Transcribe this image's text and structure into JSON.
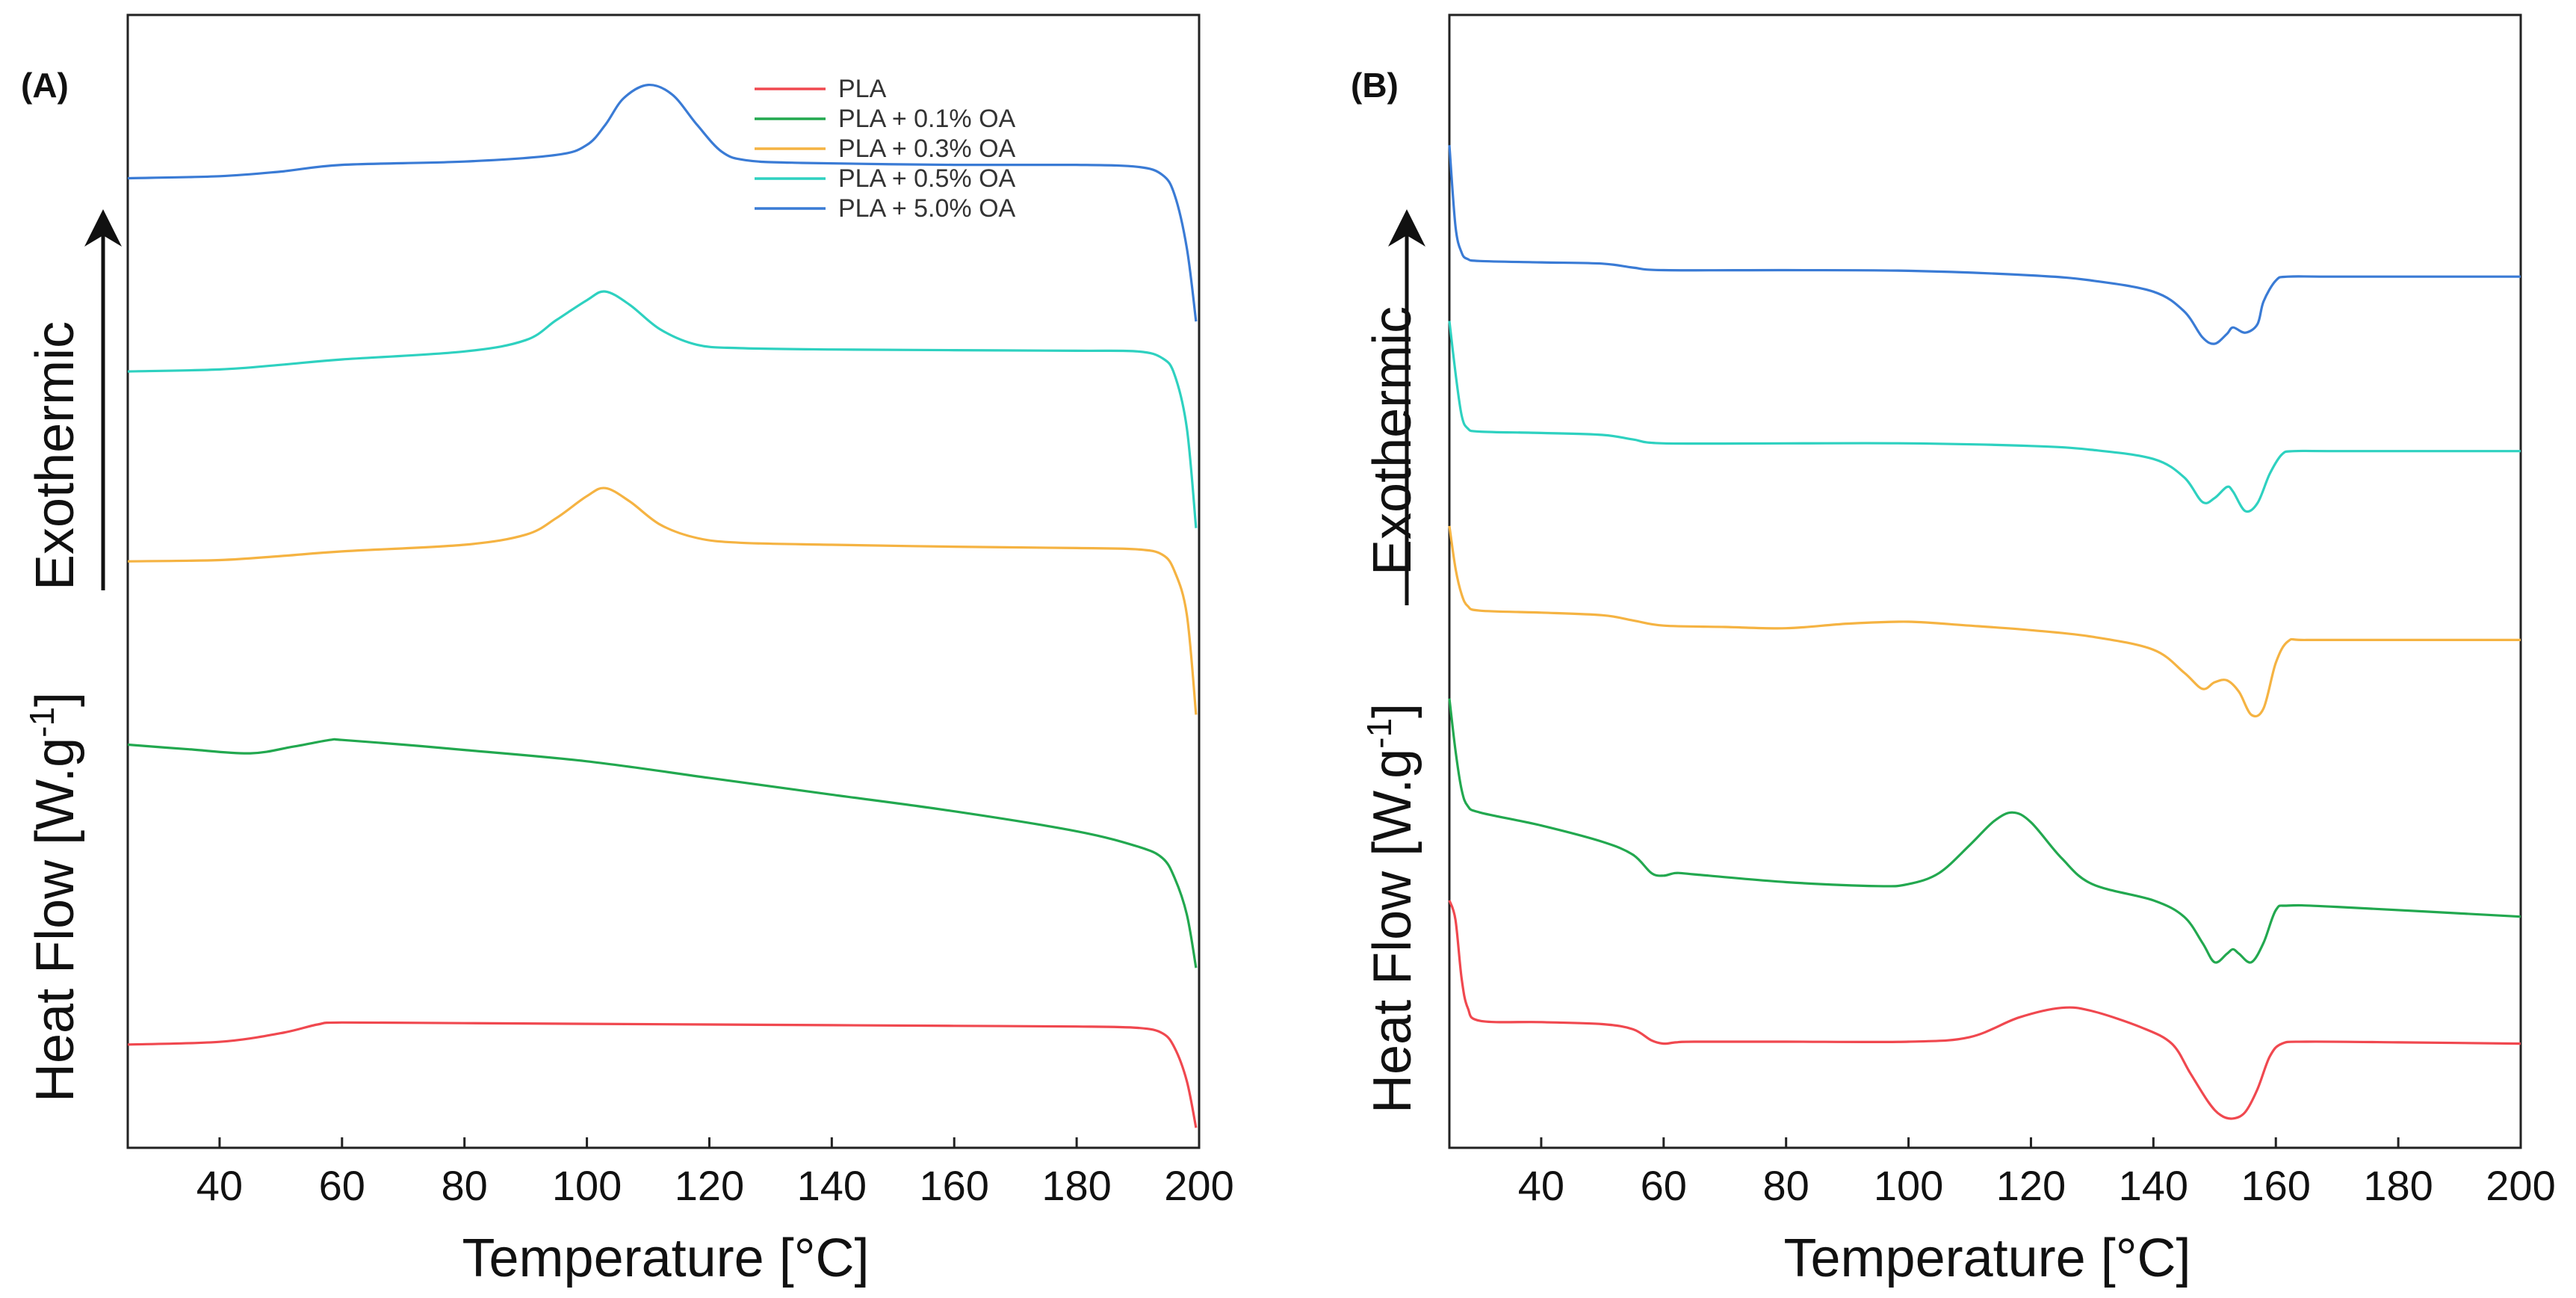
{
  "chart_data": [
    {
      "type": "line",
      "panel_label": "(A)",
      "xlabel": "Temperature [°C]",
      "ylabel": {
        "prefix": "Heat Flow  [W.g",
        "sup": "-1",
        "suffix": "]"
      },
      "arrow_label": "Exothermic",
      "xlim": [
        25,
        200
      ],
      "xticks": [
        "40",
        "60",
        "80",
        "100",
        "120",
        "140",
        "160",
        "180",
        "200"
      ],
      "legend": {
        "placement": "top-right"
      },
      "series": [
        {
          "name": "PLA",
          "color": "#f0484f",
          "x": [
            25,
            40,
            50,
            56,
            60,
            80,
            100,
            120,
            140,
            160,
            180,
            190,
            194,
            196,
            198,
            199.5
          ],
          "y": [
            1.05,
            1.09,
            1.22,
            1.35,
            1.38,
            1.37,
            1.36,
            1.35,
            1.34,
            1.33,
            1.32,
            1.3,
            1.22,
            1.0,
            0.5,
            -0.2
          ]
        },
        {
          "name": "PLA + 0.1% OA",
          "color": "#22a84f",
          "x": [
            25,
            35,
            45,
            52,
            58,
            60,
            70,
            80,
            100,
            120,
            140,
            160,
            180,
            190,
            194,
            196,
            198,
            199.5
          ],
          "y": [
            5.55,
            5.48,
            5.42,
            5.52,
            5.62,
            5.62,
            5.55,
            5.47,
            5.3,
            5.05,
            4.8,
            4.55,
            4.25,
            4.02,
            3.85,
            3.55,
            3.0,
            2.2
          ]
        },
        {
          "name": "PLA + 0.3% OA",
          "color": "#f5b342",
          "x": [
            25,
            40,
            50,
            60,
            80,
            90,
            95,
            100,
            103,
            107,
            112,
            118,
            125,
            140,
            160,
            180,
            190,
            194,
            196,
            198,
            199.5
          ],
          "y": [
            8.3,
            8.32,
            8.38,
            8.45,
            8.55,
            8.7,
            8.95,
            9.28,
            9.4,
            9.2,
            8.85,
            8.65,
            8.58,
            8.55,
            8.52,
            8.5,
            8.48,
            8.4,
            8.15,
            7.5,
            6.0
          ]
        },
        {
          "name": "PLA + 0.5% OA",
          "color": "#2ed1c0",
          "x": [
            25,
            40,
            50,
            60,
            80,
            90,
            95,
            100,
            103,
            107,
            112,
            118,
            125,
            140,
            160,
            180,
            190,
            194,
            196,
            198,
            199.5
          ],
          "y": [
            11.15,
            11.18,
            11.25,
            11.33,
            11.45,
            11.62,
            11.92,
            12.22,
            12.35,
            12.15,
            11.78,
            11.55,
            11.5,
            11.48,
            11.47,
            11.46,
            11.45,
            11.35,
            11.1,
            10.3,
            8.8
          ]
        },
        {
          "name": "PLA + 5.0% OA",
          "color": "#3a7bd5",
          "x": [
            25,
            40,
            50,
            60,
            80,
            95,
            100,
            103,
            106,
            110,
            114,
            118,
            122,
            126,
            135,
            160,
            180,
            190,
            194,
            196,
            198,
            199.5
          ],
          "y": [
            14.05,
            14.08,
            14.15,
            14.25,
            14.3,
            14.4,
            14.55,
            14.85,
            15.25,
            15.45,
            15.3,
            14.85,
            14.45,
            14.32,
            14.28,
            14.25,
            14.25,
            14.22,
            14.1,
            13.8,
            13.0,
            11.9
          ]
        }
      ]
    },
    {
      "type": "line",
      "panel_label": "(B)",
      "xlabel": "Temperature [°C]",
      "ylabel": {
        "prefix": "Heat Flow  [W.g",
        "sup": "-1",
        "suffix": "]"
      },
      "arrow_label": "Exothermic",
      "xlim": [
        25,
        200
      ],
      "xticks": [
        "40",
        "60",
        "80",
        "100",
        "120",
        "140",
        "160",
        "180",
        "200"
      ],
      "series": [
        {
          "name": "PLA",
          "color": "#f0484f",
          "x": [
            25,
            26,
            27,
            28,
            30,
            40,
            50,
            55,
            58,
            60,
            62,
            65,
            80,
            100,
            110,
            118,
            125,
            130,
            138,
            143,
            146,
            149,
            151,
            153,
            155,
            157,
            159,
            161,
            165,
            180,
            200
          ],
          "y": [
            2.2,
            1.9,
            1.0,
            0.55,
            0.35,
            0.33,
            0.3,
            0.22,
            0.05,
            0.0,
            0.02,
            0.03,
            0.03,
            0.03,
            0.1,
            0.4,
            0.55,
            0.5,
            0.25,
            0.0,
            -0.45,
            -0.9,
            -1.1,
            -1.15,
            -1.05,
            -0.7,
            -0.2,
            0.0,
            0.03,
            0.02,
            0.0
          ]
        },
        {
          "name": "PLA + 0.1% OA",
          "color": "#22a84f",
          "x": [
            25,
            26,
            27,
            28,
            30,
            40,
            50,
            55,
            58,
            60,
            62,
            65,
            80,
            95,
            100,
            105,
            110,
            114,
            117,
            120,
            125,
            130,
            140,
            145,
            148,
            150,
            152,
            153,
            154,
            156,
            158,
            160,
            162,
            170,
            200
          ],
          "y": [
            5.3,
            4.5,
            3.9,
            3.65,
            3.55,
            3.35,
            3.1,
            2.9,
            2.62,
            2.58,
            2.62,
            2.6,
            2.48,
            2.42,
            2.45,
            2.62,
            3.05,
            3.42,
            3.55,
            3.4,
            2.85,
            2.45,
            2.2,
            1.95,
            1.55,
            1.25,
            1.38,
            1.45,
            1.38,
            1.25,
            1.55,
            2.05,
            2.12,
            2.1,
            1.95
          ]
        },
        {
          "name": "PLA + 0.3% OA",
          "color": "#f5b342",
          "x": [
            25,
            26,
            27,
            28,
            30,
            40,
            50,
            55,
            60,
            70,
            80,
            90,
            100,
            110,
            120,
            130,
            140,
            145,
            148,
            150,
            152,
            154,
            156,
            158,
            160,
            162,
            165,
            180,
            200
          ],
          "y": [
            7.95,
            7.3,
            6.9,
            6.72,
            6.65,
            6.62,
            6.58,
            6.5,
            6.42,
            6.4,
            6.38,
            6.45,
            6.48,
            6.42,
            6.35,
            6.25,
            6.05,
            5.7,
            5.45,
            5.55,
            5.58,
            5.4,
            5.05,
            5.15,
            5.85,
            6.18,
            6.2,
            6.2,
            6.2
          ]
        },
        {
          "name": "PLA + 0.5% OA",
          "color": "#2ed1c0",
          "x": [
            25,
            26,
            27,
            28,
            30,
            40,
            50,
            55,
            60,
            80,
            100,
            120,
            130,
            140,
            145,
            148,
            150,
            152,
            153,
            155,
            157,
            159,
            161,
            163,
            170,
            200
          ],
          "y": [
            11.1,
            10.3,
            9.65,
            9.45,
            9.4,
            9.38,
            9.35,
            9.28,
            9.22,
            9.22,
            9.22,
            9.18,
            9.12,
            8.98,
            8.7,
            8.32,
            8.38,
            8.55,
            8.48,
            8.18,
            8.3,
            8.75,
            9.05,
            9.1,
            9.1,
            9.1
          ]
        },
        {
          "name": "PLA + 5.0% OA",
          "color": "#3a7bd5",
          "x": [
            25,
            26,
            27,
            28,
            30,
            40,
            50,
            55,
            60,
            80,
            100,
            120,
            130,
            140,
            145,
            148,
            150,
            152,
            153,
            155,
            157,
            158,
            160,
            162,
            170,
            200
          ],
          "y": [
            13.8,
            12.55,
            12.15,
            12.05,
            12.02,
            12.0,
            11.98,
            11.92,
            11.88,
            11.88,
            11.87,
            11.8,
            11.72,
            11.55,
            11.25,
            10.85,
            10.75,
            10.9,
            11.0,
            10.92,
            11.05,
            11.4,
            11.72,
            11.78,
            11.78,
            11.78
          ]
        }
      ]
    }
  ]
}
